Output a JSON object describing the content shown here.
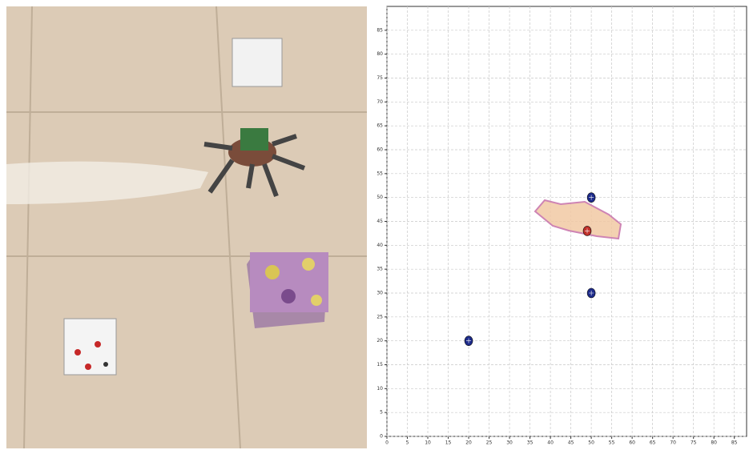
{
  "chart_data": {
    "type": "scatter",
    "xlim": [
      0,
      88
    ],
    "ylim": [
      0,
      90
    ],
    "xticks": [
      0,
      5,
      10,
      15,
      20,
      25,
      30,
      35,
      40,
      45,
      50,
      55,
      60,
      65,
      70,
      75,
      80,
      85
    ],
    "yticks": [
      0,
      5,
      10,
      15,
      20,
      25,
      30,
      35,
      40,
      45,
      50,
      55,
      60,
      65,
      70,
      75,
      80,
      85
    ],
    "grid": true,
    "series": [
      {
        "color": "#1c2a8a",
        "x": [
          50,
          50,
          20
        ],
        "values": [
          50,
          30,
          20
        ]
      },
      {
        "color": "#c0302a",
        "x": [
          49
        ],
        "values": [
          43
        ]
      }
    ]
  }
}
